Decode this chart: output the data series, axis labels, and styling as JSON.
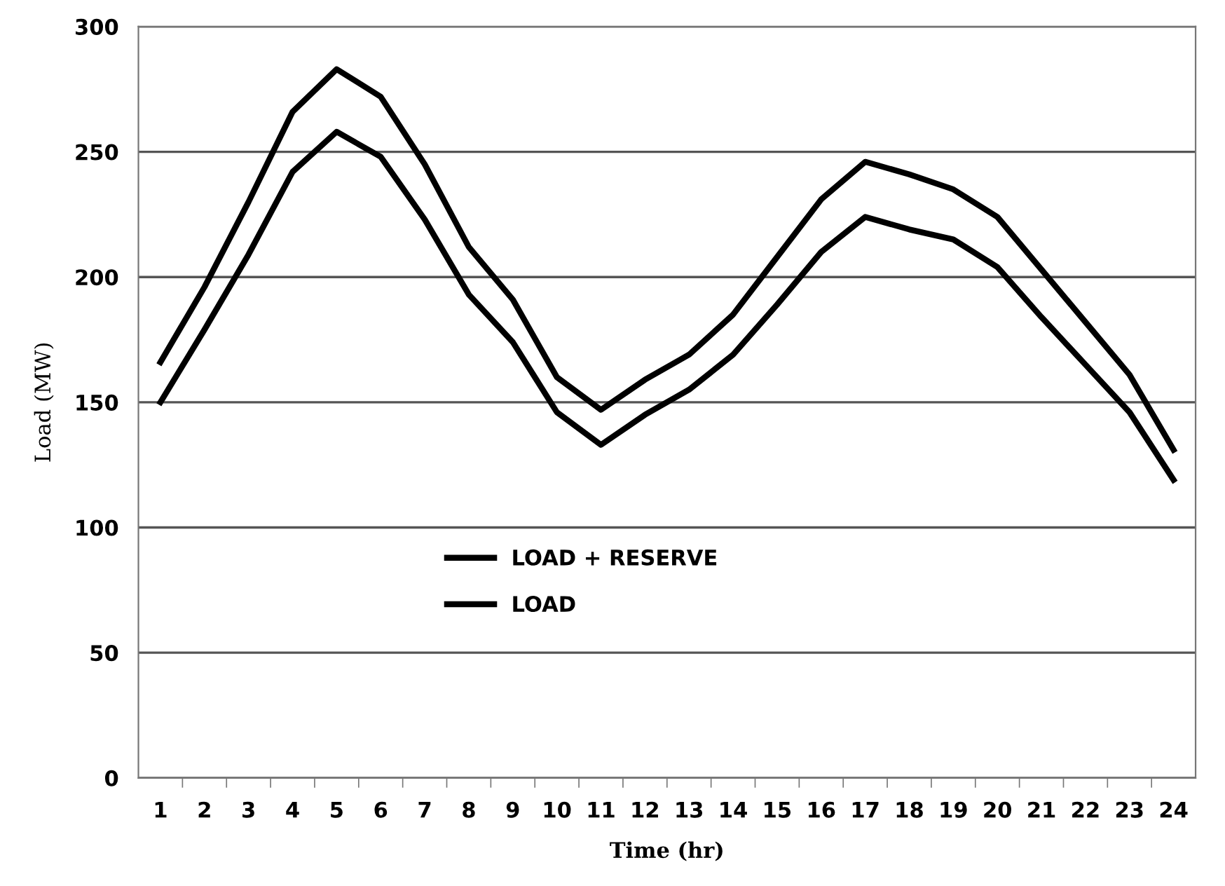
{
  "chart_data": {
    "type": "line",
    "xlabel": "Time (hr)",
    "ylabel": "Load (MW)",
    "categories": [
      "1",
      "2",
      "3",
      "4",
      "5",
      "6",
      "7",
      "8",
      "9",
      "10",
      "11",
      "12",
      "13",
      "14",
      "15",
      "16",
      "17",
      "18",
      "19",
      "20",
      "21",
      "22",
      "23",
      "24"
    ],
    "series": [
      {
        "name": "LOAD + RESERVE",
        "color": "#000000",
        "values": [
          166,
          196,
          230,
          266,
          283,
          272,
          245,
          212,
          191,
          160,
          147,
          159,
          169,
          185,
          208,
          231,
          246,
          241,
          235,
          224,
          203,
          182,
          161,
          131
        ]
      },
      {
        "name": "LOAD",
        "color": "#000000",
        "values": [
          150,
          179,
          209,
          242,
          258,
          248,
          223,
          193,
          174,
          146,
          133,
          145,
          155,
          169,
          189,
          210,
          224,
          219,
          215,
          204,
          184,
          165,
          146,
          119
        ]
      }
    ],
    "ylim": [
      0,
      300
    ],
    "yticks": [
      0,
      50,
      100,
      150,
      200,
      250,
      300
    ],
    "grid": "y",
    "legend": "center",
    "marker": "none",
    "line_style": "solid"
  }
}
